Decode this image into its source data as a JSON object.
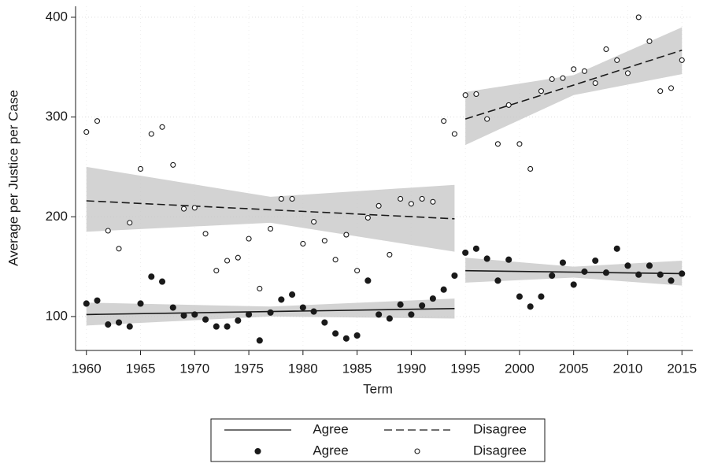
{
  "chart_data": {
    "type": "scatter",
    "x_label": "Term",
    "y_label": "Average per Justice per Case",
    "xlim": [
      1959,
      2016
    ],
    "ylim": [
      66,
      411
    ],
    "xticks": [
      1960,
      1965,
      1970,
      1975,
      1980,
      1985,
      1990,
      1995,
      2000,
      2005,
      2010,
      2015
    ],
    "yticks": [
      100,
      200,
      300,
      400
    ],
    "grid": true,
    "x": [
      1960,
      1961,
      1962,
      1963,
      1964,
      1965,
      1966,
      1967,
      1968,
      1969,
      1970,
      1971,
      1972,
      1973,
      1974,
      1975,
      1976,
      1977,
      1978,
      1979,
      1980,
      1981,
      1982,
      1983,
      1984,
      1985,
      1986,
      1987,
      1988,
      1989,
      1990,
      1991,
      1992,
      1993,
      1994,
      1995,
      1996,
      1997,
      1998,
      1999,
      2000,
      2001,
      2002,
      2003,
      2004,
      2005,
      2006,
      2007,
      2008,
      2009,
      2010,
      2011,
      2012,
      2013,
      2014,
      2015
    ],
    "series": [
      {
        "name": "Agree",
        "marker": "filled",
        "color": "#1a1a1a",
        "values": [
          113,
          116,
          92,
          94,
          90,
          113,
          140,
          135,
          109,
          101,
          102,
          97,
          90,
          90,
          96,
          102,
          76,
          104,
          117,
          122,
          109,
          105,
          94,
          83,
          78,
          81,
          136,
          102,
          98,
          112,
          102,
          111,
          118,
          127,
          141,
          164,
          168,
          158,
          136,
          157,
          120,
          110,
          120,
          141,
          154,
          132,
          145,
          156,
          144,
          168,
          151,
          142,
          151,
          142,
          136,
          143
        ]
      },
      {
        "name": "Disagree",
        "marker": "open",
        "color": "#1a1a1a",
        "values": [
          285,
          296,
          186,
          168,
          194,
          248,
          283,
          290,
          252,
          208,
          209,
          183,
          146,
          156,
          159,
          178,
          128,
          188,
          218,
          218,
          173,
          195,
          176,
          157,
          182,
          146,
          199,
          211,
          162,
          218,
          213,
          218,
          215,
          296,
          283,
          322,
          323,
          298,
          273,
          312,
          273,
          248,
          326,
          338,
          339,
          348,
          346,
          334,
          368,
          357,
          344,
          400,
          376,
          326,
          329,
          357
        ]
      }
    ],
    "fits": [
      {
        "name": "Agree",
        "dashed": false,
        "color": "#1a1a1a",
        "band_color": "#c4c4c4",
        "segments": [
          {
            "x": [
              1960,
              1977,
              1994
            ],
            "values": [
              102,
              105,
              108
            ],
            "lower": [
              91,
              100,
              98
            ],
            "upper": [
              114,
              110,
              118
            ]
          },
          {
            "x": [
              1995,
              2005,
              2015
            ],
            "values": [
              146,
              144.5,
              143
            ],
            "lower": [
              134,
              139,
              131
            ],
            "upper": [
              159,
              150,
              156
            ]
          }
        ]
      },
      {
        "name": "Disagree",
        "dashed": true,
        "color": "#1a1a1a",
        "band_color": "#c4c4c4",
        "segments": [
          {
            "x": [
              1960,
              1977,
              1994
            ],
            "values": [
              216,
              207,
              198
            ],
            "lower": [
              185,
              194,
              165
            ],
            "upper": [
              250,
              220,
              232
            ]
          },
          {
            "x": [
              1995,
              2005,
              2015
            ],
            "values": [
              298,
              332,
              367
            ],
            "lower": [
              272,
              322,
              343
            ],
            "upper": [
              325,
              342,
              390
            ]
          }
        ]
      }
    ]
  }
}
